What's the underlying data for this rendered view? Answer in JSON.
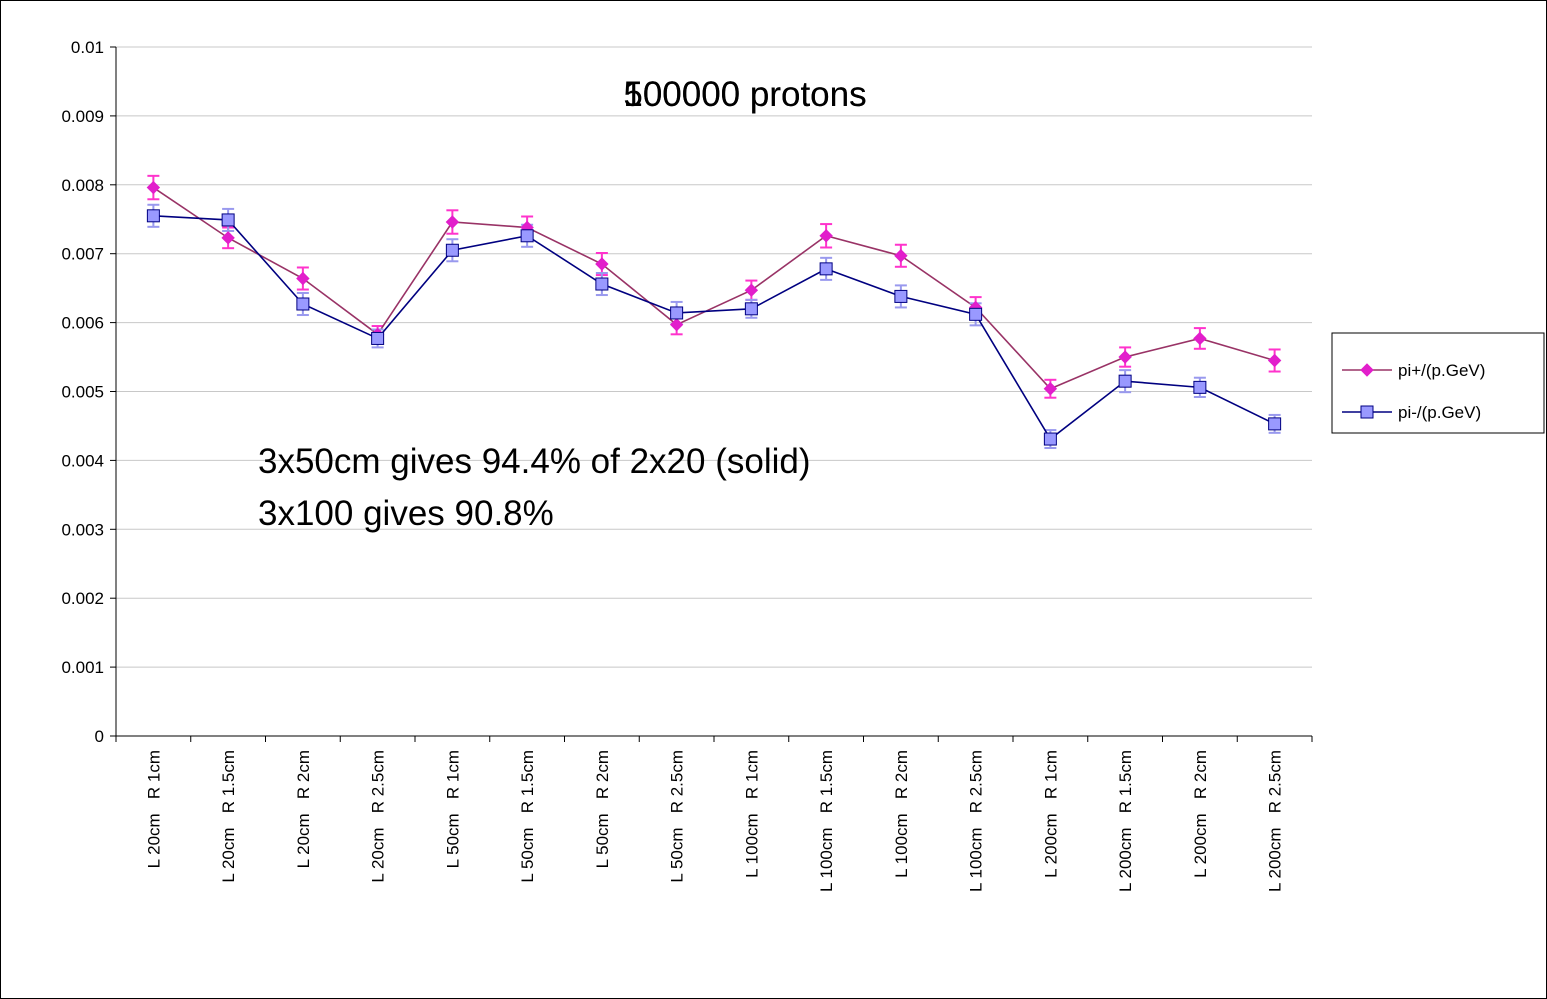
{
  "chart_data": {
    "type": "line",
    "title": "500000 protons",
    "title_overlay": "100000 protons",
    "annotations": [
      "3x50cm gives 94.4% of 2x20 (solid)",
      "3x100 gives 90.8%"
    ],
    "categories": [
      "L 20cm   R 1cm",
      "L 20cm   R 1.5cm",
      "L 20cm   R 2cm",
      "L 20cm   R 2.5cm",
      "L 50cm   R 1cm",
      "L 50cm   R 1.5cm",
      "L 50cm   R 2cm",
      "L 50cm   R 2.5cm",
      "L 100cm   R 1cm",
      "L 100cm   R 1.5cm",
      "L 100cm   R 2cm",
      "L 100cm   R 2.5cm",
      "L 200cm   R 1cm",
      "L 200cm   R 1.5cm",
      "L 200cm   R 2cm",
      "L 200cm   R 2.5cm"
    ],
    "series": [
      {
        "name": "pi+/(p.GeV)",
        "color": "#993366",
        "marker_color": "#e21ecb",
        "marker": "diamond",
        "error_color": "#ff33cc",
        "values": [
          0.00796,
          0.00723,
          0.00664,
          0.00583,
          0.00746,
          0.00738,
          0.00685,
          0.00597,
          0.00647,
          0.00726,
          0.00697,
          0.00622,
          0.00504,
          0.0055,
          0.00577,
          0.00545
        ],
        "errors": [
          0.00017,
          0.00015,
          0.00016,
          0.00012,
          0.00017,
          0.00016,
          0.00016,
          0.00014,
          0.00014,
          0.00017,
          0.00016,
          0.00015,
          0.00013,
          0.00014,
          0.00015,
          0.00016
        ]
      },
      {
        "name": "pi-/(p.GeV)",
        "color": "#000080",
        "marker_color": "#9999ff",
        "marker": "square",
        "error_color": "#9999ee",
        "values": [
          0.00755,
          0.00749,
          0.00627,
          0.00577,
          0.00705,
          0.00726,
          0.00656,
          0.00614,
          0.0062,
          0.00678,
          0.00638,
          0.00612,
          0.00431,
          0.00515,
          0.00506,
          0.00453
        ],
        "errors": [
          0.00016,
          0.00016,
          0.00016,
          0.00013,
          0.00016,
          0.00016,
          0.00016,
          0.00016,
          0.00013,
          0.00016,
          0.00016,
          0.00016,
          0.00013,
          0.00016,
          0.00014,
          0.00013
        ]
      }
    ],
    "ylim": [
      0,
      0.01
    ],
    "yticks": [
      0,
      0.001,
      0.002,
      0.003,
      0.004,
      0.005,
      0.006,
      0.007,
      0.008,
      0.009,
      0.01
    ],
    "grid": true,
    "legend": "right"
  }
}
